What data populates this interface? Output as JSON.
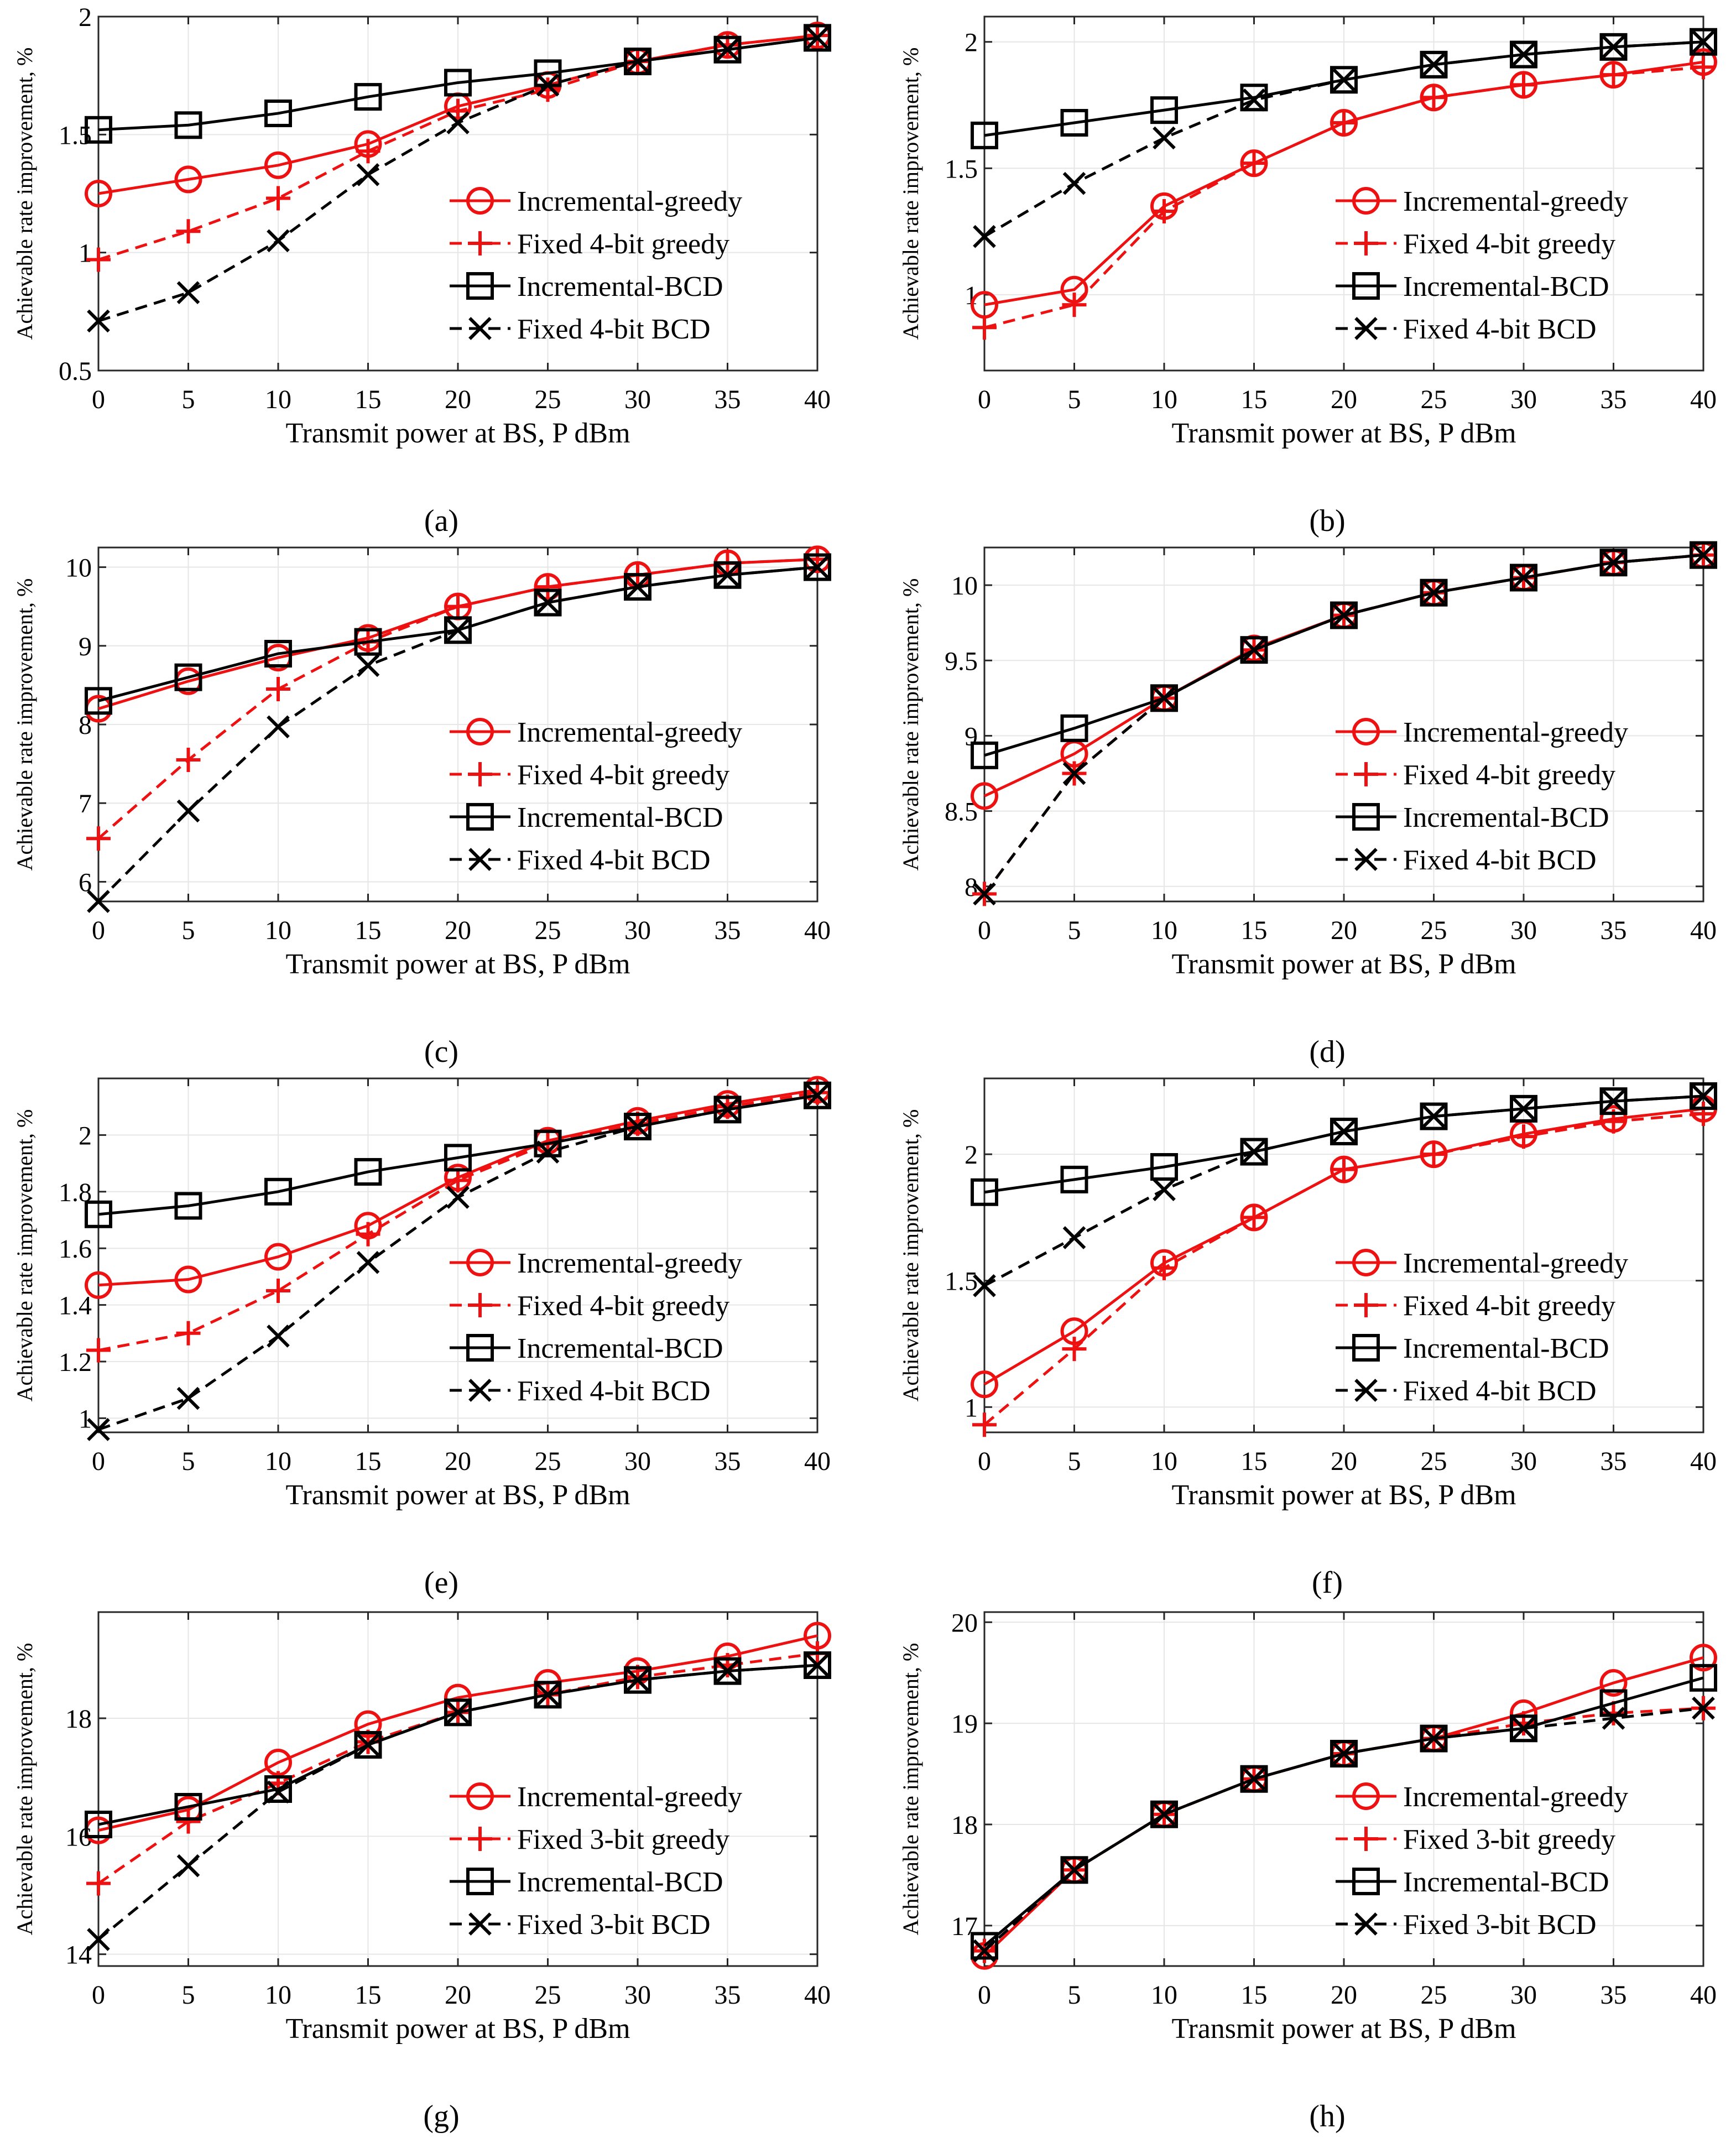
{
  "figure": {
    "x_axis_label": "Transmit power at BS, P dBm",
    "y_axis_label": "Achievable rate improvement, %"
  },
  "styles": {
    "red": "#ee1111",
    "black": "#000000",
    "grid": "#e6e6e6"
  },
  "chart_data": [
    {
      "id": "a",
      "type": "line",
      "caption": "(a)",
      "x": [
        0,
        5,
        10,
        15,
        20,
        25,
        30,
        35,
        40
      ],
      "xlim": [
        0,
        40
      ],
      "ylim": [
        0.5,
        2.0
      ],
      "yticks": [
        0.5,
        1,
        1.5,
        2
      ],
      "ytick_labels": [
        "0.5",
        "1",
        "1.5",
        "2"
      ],
      "legend_position": "lower-right",
      "series": [
        {
          "name": "Incremental-greedy",
          "color": "red",
          "dash": false,
          "marker": "circle",
          "values": [
            1.25,
            1.31,
            1.37,
            1.46,
            1.62,
            1.71,
            1.81,
            1.88,
            1.92
          ]
        },
        {
          "name": "Fixed 4-bit greedy",
          "color": "red",
          "dash": true,
          "marker": "plus",
          "values": [
            0.97,
            1.09,
            1.23,
            1.43,
            1.6,
            1.69,
            1.81,
            1.88,
            1.92
          ]
        },
        {
          "name": "Incremental-BCD",
          "color": "black",
          "dash": false,
          "marker": "square",
          "values": [
            1.52,
            1.54,
            1.59,
            1.66,
            1.72,
            1.76,
            1.81,
            1.86,
            1.91
          ]
        },
        {
          "name": "Fixed 4-bit BCD",
          "color": "black",
          "dash": true,
          "marker": "x",
          "values": [
            0.71,
            0.83,
            1.05,
            1.33,
            1.55,
            1.71,
            1.81,
            1.86,
            1.91
          ]
        }
      ]
    },
    {
      "id": "b",
      "type": "line",
      "caption": "(b)",
      "x": [
        0,
        5,
        10,
        15,
        20,
        25,
        30,
        35,
        40
      ],
      "xlim": [
        0,
        40
      ],
      "ylim": [
        0.7,
        2.1
      ],
      "yticks": [
        1.0,
        1.5,
        2.0
      ],
      "ytick_labels": [
        "1",
        "1.5",
        "2"
      ],
      "legend_position": "lower-right",
      "series": [
        {
          "name": "Incremental-greedy",
          "color": "red",
          "dash": false,
          "marker": "circle",
          "values": [
            0.96,
            1.02,
            1.35,
            1.52,
            1.68,
            1.78,
            1.83,
            1.87,
            1.92
          ]
        },
        {
          "name": "Fixed 4-bit greedy",
          "color": "red",
          "dash": true,
          "marker": "plus",
          "values": [
            0.87,
            0.96,
            1.33,
            1.52,
            1.68,
            1.78,
            1.83,
            1.87,
            1.9
          ]
        },
        {
          "name": "Incremental-BCD",
          "color": "black",
          "dash": false,
          "marker": "square",
          "values": [
            1.63,
            1.68,
            1.73,
            1.78,
            1.85,
            1.91,
            1.95,
            1.98,
            2.0
          ]
        },
        {
          "name": "Fixed 4-bit BCD",
          "color": "black",
          "dash": true,
          "marker": "x",
          "values": [
            1.23,
            1.44,
            1.62,
            1.77,
            1.85,
            1.91,
            1.95,
            1.98,
            2.0
          ]
        }
      ]
    },
    {
      "id": "c",
      "type": "line",
      "caption": "(c)",
      "x": [
        0,
        5,
        10,
        15,
        20,
        25,
        30,
        35,
        40
      ],
      "xlim": [
        0,
        40
      ],
      "ylim": [
        5.75,
        10.25
      ],
      "yticks": [
        6,
        7,
        8,
        9,
        10
      ],
      "ytick_labels": [
        "6",
        "7",
        "8",
        "9",
        "10"
      ],
      "legend_position": "lower-right",
      "series": [
        {
          "name": "Incremental-greedy",
          "color": "red",
          "dash": false,
          "marker": "circle",
          "values": [
            8.2,
            8.55,
            8.85,
            9.1,
            9.5,
            9.75,
            9.9,
            10.05,
            10.1
          ]
        },
        {
          "name": "Fixed 4-bit greedy",
          "color": "red",
          "dash": true,
          "marker": "plus",
          "values": [
            6.55,
            7.55,
            8.45,
            9.05,
            9.5,
            9.75,
            9.9,
            10.05,
            10.1
          ]
        },
        {
          "name": "Incremental-BCD",
          "color": "black",
          "dash": false,
          "marker": "square",
          "values": [
            8.3,
            8.6,
            8.9,
            9.05,
            9.2,
            9.55,
            9.75,
            9.9,
            10.0
          ]
        },
        {
          "name": "Fixed 4-bit BCD",
          "color": "black",
          "dash": true,
          "marker": "x",
          "values": [
            5.75,
            6.9,
            7.97,
            8.75,
            9.2,
            9.55,
            9.75,
            9.9,
            10.0
          ]
        }
      ]
    },
    {
      "id": "d",
      "type": "line",
      "caption": "(d)",
      "x": [
        0,
        5,
        10,
        15,
        20,
        25,
        30,
        35,
        40
      ],
      "xlim": [
        0,
        40
      ],
      "ylim": [
        7.9,
        10.25
      ],
      "yticks": [
        8,
        8.5,
        9,
        9.5,
        10
      ],
      "ytick_labels": [
        "8",
        "8.5",
        "9",
        "9.5",
        "10"
      ],
      "legend_position": "lower-right",
      "series": [
        {
          "name": "Incremental-greedy",
          "color": "red",
          "dash": false,
          "marker": "circle",
          "values": [
            8.6,
            8.88,
            9.25,
            9.58,
            9.8,
            9.95,
            10.05,
            10.15,
            10.2
          ]
        },
        {
          "name": "Fixed 4-bit greedy",
          "color": "red",
          "dash": true,
          "marker": "plus",
          "values": [
            7.95,
            8.75,
            9.25,
            9.57,
            9.8,
            9.95,
            10.05,
            10.15,
            10.2
          ]
        },
        {
          "name": "Incremental-BCD",
          "color": "black",
          "dash": false,
          "marker": "square",
          "values": [
            8.87,
            9.05,
            9.25,
            9.57,
            9.8,
            9.95,
            10.05,
            10.15,
            10.2
          ]
        },
        {
          "name": "Fixed 4-bit BCD",
          "color": "black",
          "dash": true,
          "marker": "x",
          "values": [
            7.95,
            8.75,
            9.25,
            9.57,
            9.8,
            9.95,
            10.05,
            10.15,
            10.2
          ]
        }
      ]
    },
    {
      "id": "e",
      "type": "line",
      "caption": "(e)",
      "x": [
        0,
        5,
        10,
        15,
        20,
        25,
        30,
        35,
        40
      ],
      "xlim": [
        0,
        40
      ],
      "ylim": [
        0.95,
        2.2
      ],
      "yticks": [
        1.0,
        1.2,
        1.4,
        1.6,
        1.8,
        2.0
      ],
      "ytick_labels": [
        "1",
        "1.2",
        "1.4",
        "1.6",
        "1.8",
        "2"
      ],
      "legend_position": "lower-right",
      "series": [
        {
          "name": "Incremental-greedy",
          "color": "red",
          "dash": false,
          "marker": "circle",
          "values": [
            1.47,
            1.49,
            1.57,
            1.68,
            1.85,
            1.98,
            2.05,
            2.11,
            2.16
          ]
        },
        {
          "name": "Fixed 4-bit greedy",
          "color": "red",
          "dash": true,
          "marker": "plus",
          "values": [
            1.24,
            1.3,
            1.45,
            1.65,
            1.84,
            1.97,
            2.04,
            2.1,
            2.15
          ]
        },
        {
          "name": "Incremental-BCD",
          "color": "black",
          "dash": false,
          "marker": "square",
          "values": [
            1.72,
            1.75,
            1.8,
            1.87,
            1.92,
            1.97,
            2.03,
            2.09,
            2.14
          ]
        },
        {
          "name": "Fixed 4-bit BCD",
          "color": "black",
          "dash": true,
          "marker": "x",
          "values": [
            0.96,
            1.07,
            1.29,
            1.55,
            1.78,
            1.94,
            2.03,
            2.09,
            2.14
          ]
        }
      ]
    },
    {
      "id": "f",
      "type": "line",
      "caption": "(f)",
      "x": [
        0,
        5,
        10,
        15,
        20,
        25,
        30,
        35,
        40
      ],
      "xlim": [
        0,
        40
      ],
      "ylim": [
        0.9,
        2.3
      ],
      "yticks": [
        1.0,
        1.5,
        2.0
      ],
      "ytick_labels": [
        "1",
        "1.5",
        "2"
      ],
      "legend_position": "lower-right",
      "series": [
        {
          "name": "Incremental-greedy",
          "color": "red",
          "dash": false,
          "marker": "circle",
          "values": [
            1.09,
            1.3,
            1.57,
            1.75,
            1.94,
            2.0,
            2.08,
            2.14,
            2.18
          ]
        },
        {
          "name": "Fixed 4-bit greedy",
          "color": "red",
          "dash": true,
          "marker": "plus",
          "values": [
            0.93,
            1.23,
            1.55,
            1.75,
            1.94,
            2.0,
            2.07,
            2.13,
            2.16
          ]
        },
        {
          "name": "Incremental-BCD",
          "color": "black",
          "dash": false,
          "marker": "square",
          "values": [
            1.85,
            1.9,
            1.95,
            2.01,
            2.09,
            2.15,
            2.18,
            2.21,
            2.23
          ]
        },
        {
          "name": "Fixed 4-bit BCD",
          "color": "black",
          "dash": true,
          "marker": "x",
          "values": [
            1.48,
            1.67,
            1.86,
            2.01,
            2.09,
            2.15,
            2.18,
            2.21,
            2.23
          ]
        }
      ]
    },
    {
      "id": "g",
      "type": "line",
      "caption": "(g)",
      "x": [
        0,
        5,
        10,
        15,
        20,
        25,
        30,
        35,
        40
      ],
      "xlim": [
        0,
        40
      ],
      "ylim": [
        13.8,
        19.8
      ],
      "yticks": [
        14,
        16,
        18
      ],
      "ytick_labels": [
        "14",
        "16",
        "18"
      ],
      "legend_position": "lower-right",
      "series": [
        {
          "name": "Incremental-greedy",
          "color": "red",
          "dash": false,
          "marker": "circle",
          "values": [
            16.1,
            16.45,
            17.25,
            17.9,
            18.35,
            18.6,
            18.8,
            19.05,
            19.4
          ]
        },
        {
          "name": "Fixed 3-bit greedy",
          "color": "red",
          "dash": true,
          "marker": "plus",
          "values": [
            15.2,
            16.25,
            16.9,
            17.6,
            18.1,
            18.4,
            18.7,
            18.9,
            19.1
          ]
        },
        {
          "name": "Incremental-BCD",
          "color": "black",
          "dash": false,
          "marker": "square",
          "values": [
            16.2,
            16.5,
            16.8,
            17.55,
            18.1,
            18.4,
            18.65,
            18.8,
            18.9
          ]
        },
        {
          "name": "Fixed 3-bit BCD",
          "color": "black",
          "dash": true,
          "marker": "x",
          "values": [
            14.25,
            15.5,
            16.75,
            17.55,
            18.1,
            18.4,
            18.65,
            18.8,
            18.9
          ]
        }
      ]
    },
    {
      "id": "h",
      "type": "line",
      "caption": "(h)",
      "x": [
        0,
        5,
        10,
        15,
        20,
        25,
        30,
        35,
        40
      ],
      "xlim": [
        0,
        40
      ],
      "ylim": [
        16.6,
        20.1
      ],
      "yticks": [
        17,
        18,
        19,
        20
      ],
      "ytick_labels": [
        "17",
        "18",
        "19",
        "20"
      ],
      "legend_position": "lower-right",
      "series": [
        {
          "name": "Incremental-greedy",
          "color": "red",
          "dash": false,
          "marker": "circle",
          "values": [
            16.7,
            17.55,
            18.1,
            18.45,
            18.7,
            18.85,
            19.1,
            19.4,
            19.65
          ]
        },
        {
          "name": "Fixed 3-bit greedy",
          "color": "red",
          "dash": true,
          "marker": "plus",
          "values": [
            16.75,
            17.55,
            18.1,
            18.45,
            18.7,
            18.85,
            19.0,
            19.1,
            19.15
          ]
        },
        {
          "name": "Incremental-BCD",
          "color": "black",
          "dash": false,
          "marker": "square",
          "values": [
            16.8,
            17.55,
            18.1,
            18.45,
            18.7,
            18.85,
            18.95,
            19.2,
            19.45
          ]
        },
        {
          "name": "Fixed 3-bit BCD",
          "color": "black",
          "dash": true,
          "marker": "x",
          "values": [
            16.75,
            17.55,
            18.1,
            18.45,
            18.7,
            18.85,
            18.95,
            19.05,
            19.15
          ]
        }
      ]
    }
  ]
}
